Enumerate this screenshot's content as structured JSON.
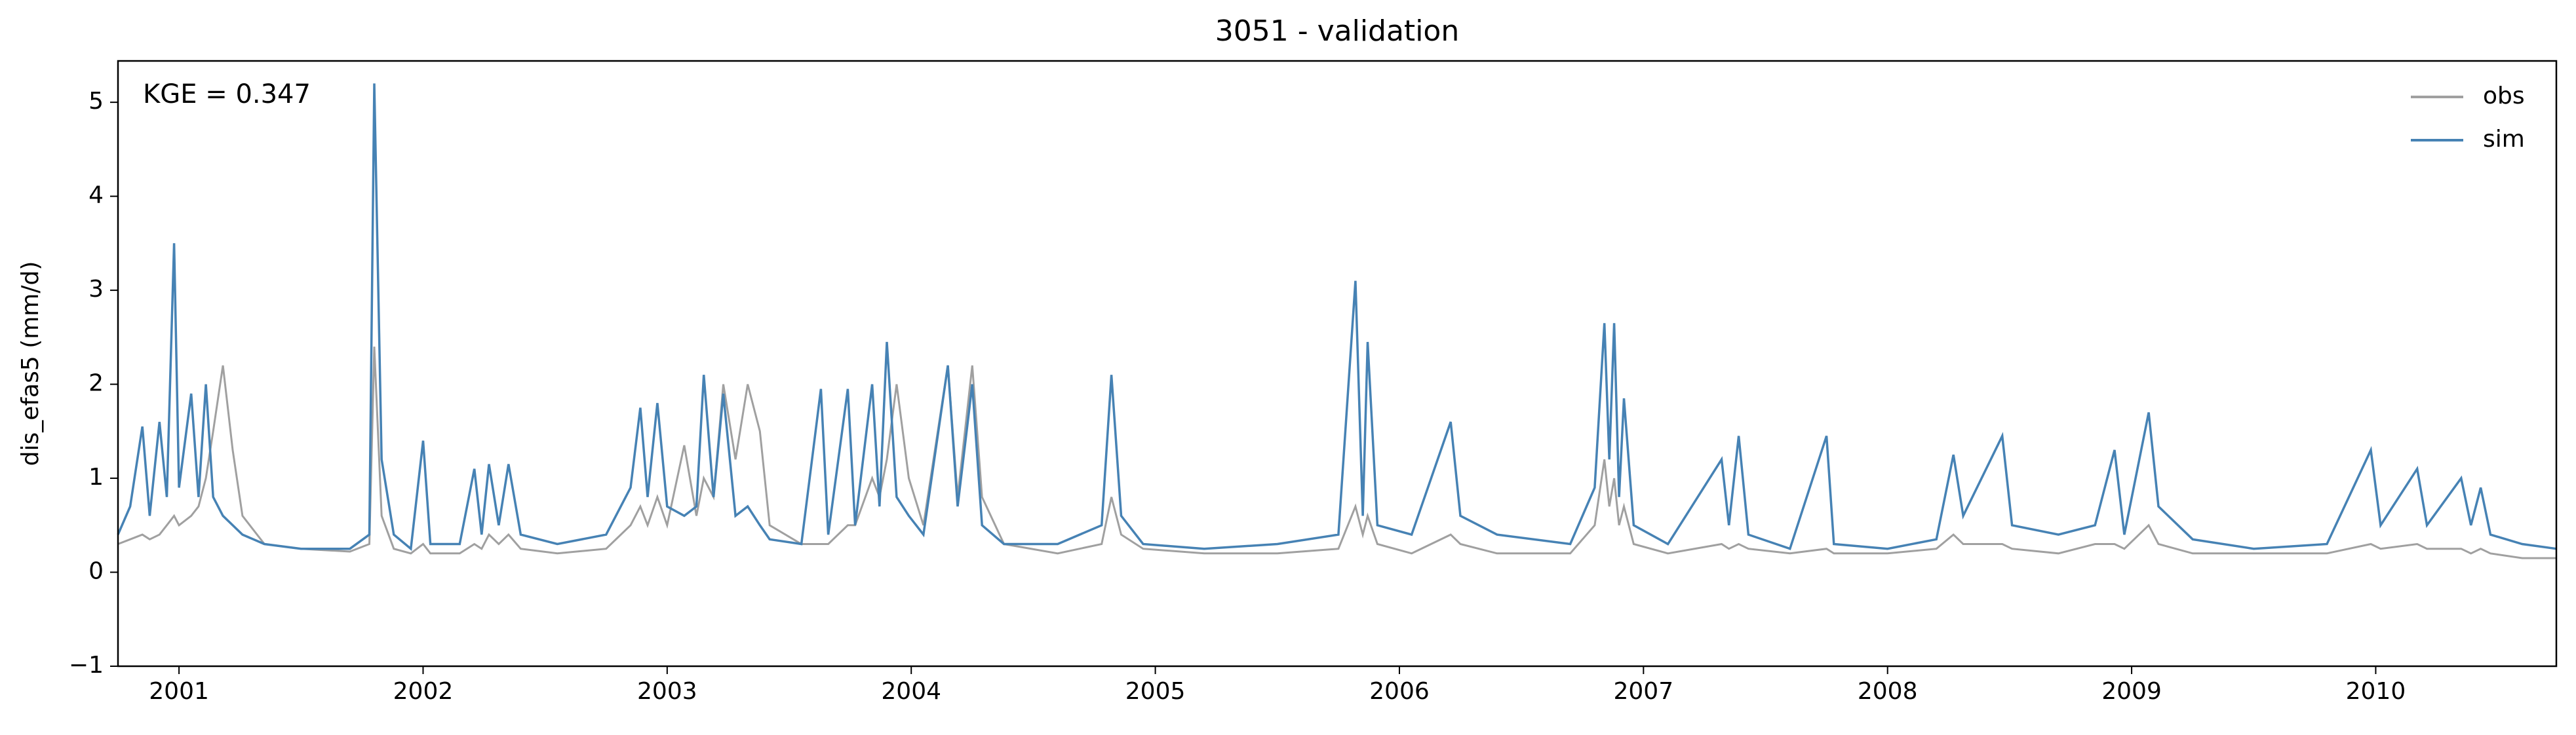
{
  "chart_data": {
    "type": "line",
    "title": "3051 - validation",
    "annotation": "KGE = 0.347",
    "y_label": "dis_efas5 (mm/d)",
    "x": [
      2000.75,
      2000.8,
      2000.85,
      2000.88,
      2000.92,
      2000.95,
      2000.98,
      2001.0,
      2001.05,
      2001.08,
      2001.11,
      2001.14,
      2001.18,
      2001.22,
      2001.26,
      2001.35,
      2001.5,
      2001.7,
      2001.78,
      2001.8,
      2001.83,
      2001.88,
      2001.95,
      2002.0,
      2002.03,
      2002.15,
      2002.21,
      2002.24,
      2002.27,
      2002.31,
      2002.35,
      2002.4,
      2002.55,
      2002.75,
      2002.85,
      2002.89,
      2002.92,
      2002.96,
      2003.0,
      2003.07,
      2003.12,
      2003.15,
      2003.19,
      2003.23,
      2003.28,
      2003.33,
      2003.38,
      2003.42,
      2003.55,
      2003.63,
      2003.66,
      2003.74,
      2003.77,
      2003.84,
      2003.87,
      2003.9,
      2003.94,
      2003.99,
      2004.05,
      2004.15,
      2004.19,
      2004.25,
      2004.29,
      2004.38,
      2004.6,
      2004.78,
      2004.82,
      2004.86,
      2004.95,
      2005.2,
      2005.5,
      2005.75,
      2005.82,
      2005.85,
      2005.87,
      2005.91,
      2006.05,
      2006.21,
      2006.25,
      2006.4,
      2006.7,
      2006.8,
      2006.84,
      2006.86,
      2006.88,
      2006.9,
      2006.92,
      2006.96,
      2007.1,
      2007.32,
      2007.35,
      2007.39,
      2007.43,
      2007.6,
      2007.75,
      2007.78,
      2008.0,
      2008.2,
      2008.27,
      2008.31,
      2008.47,
      2008.51,
      2008.7,
      2008.85,
      2008.93,
      2008.97,
      2009.07,
      2009.11,
      2009.25,
      2009.5,
      2009.8,
      2009.98,
      2010.02,
      2010.17,
      2010.21,
      2010.35,
      2010.39,
      2010.43,
      2010.47,
      2010.6,
      2010.74
    ],
    "series": [
      {
        "name": "obs",
        "color": "#a0a0a0",
        "values": [
          0.3,
          0.35,
          0.4,
          0.35,
          0.4,
          0.5,
          0.6,
          0.5,
          0.6,
          0.7,
          1.0,
          1.5,
          2.2,
          1.3,
          0.6,
          0.3,
          0.25,
          0.22,
          0.3,
          2.4,
          0.6,
          0.25,
          0.2,
          0.3,
          0.2,
          0.2,
          0.3,
          0.25,
          0.4,
          0.3,
          0.4,
          0.25,
          0.2,
          0.25,
          0.5,
          0.7,
          0.5,
          0.8,
          0.5,
          1.35,
          0.6,
          1.0,
          0.8,
          2.0,
          1.2,
          2.0,
          1.5,
          0.5,
          0.3,
          0.3,
          0.3,
          0.5,
          0.5,
          1.0,
          0.8,
          1.2,
          2.0,
          1.0,
          0.5,
          2.2,
          0.8,
          2.2,
          0.8,
          0.3,
          0.2,
          0.3,
          0.8,
          0.4,
          0.25,
          0.2,
          0.2,
          0.25,
          0.7,
          0.4,
          0.6,
          0.3,
          0.2,
          0.4,
          0.3,
          0.2,
          0.2,
          0.5,
          1.2,
          0.7,
          1.0,
          0.5,
          0.7,
          0.3,
          0.2,
          0.3,
          0.25,
          0.3,
          0.25,
          0.2,
          0.25,
          0.2,
          0.2,
          0.25,
          0.4,
          0.3,
          0.3,
          0.25,
          0.2,
          0.3,
          0.3,
          0.25,
          0.5,
          0.3,
          0.2,
          0.2,
          0.2,
          0.3,
          0.25,
          0.3,
          0.25,
          0.25,
          0.2,
          0.25,
          0.2,
          0.15,
          0.15
        ]
      },
      {
        "name": "sim",
        "color": "#4682b4",
        "values": [
          0.4,
          0.7,
          1.55,
          0.6,
          1.6,
          0.8,
          3.5,
          0.9,
          1.9,
          0.8,
          2.0,
          0.8,
          0.6,
          0.5,
          0.4,
          0.3,
          0.25,
          0.25,
          0.4,
          5.2,
          1.2,
          0.4,
          0.25,
          1.4,
          0.3,
          0.3,
          1.1,
          0.4,
          1.15,
          0.5,
          1.15,
          0.4,
          0.3,
          0.4,
          0.9,
          1.75,
          0.8,
          1.8,
          0.7,
          0.6,
          0.7,
          2.1,
          0.8,
          1.9,
          0.6,
          0.7,
          0.5,
          0.35,
          0.3,
          1.95,
          0.4,
          1.95,
          0.5,
          2.0,
          0.7,
          2.45,
          0.8,
          0.6,
          0.4,
          2.2,
          0.7,
          2.0,
          0.5,
          0.3,
          0.3,
          0.5,
          2.1,
          0.6,
          0.3,
          0.25,
          0.3,
          0.4,
          3.1,
          0.6,
          2.45,
          0.5,
          0.4,
          1.6,
          0.6,
          0.4,
          0.3,
          0.9,
          2.65,
          1.2,
          2.65,
          0.8,
          1.85,
          0.5,
          0.3,
          1.2,
          0.5,
          1.45,
          0.4,
          0.25,
          1.45,
          0.3,
          0.25,
          0.35,
          1.25,
          0.6,
          1.45,
          0.5,
          0.4,
          0.5,
          1.3,
          0.4,
          1.7,
          0.7,
          0.35,
          0.25,
          0.3,
          1.3,
          0.5,
          1.1,
          0.5,
          1.0,
          0.5,
          0.9,
          0.4,
          0.3,
          0.25
        ]
      }
    ],
    "xlim": [
      2000.75,
      2010.74
    ],
    "xticks": [
      2001,
      2002,
      2003,
      2004,
      2005,
      2006,
      2007,
      2008,
      2009,
      2010
    ],
    "ylim": [
      -1,
      5.44
    ],
    "yticks": [
      {
        "value": -1,
        "label": "−1"
      },
      0,
      1,
      2,
      3,
      4,
      5
    ],
    "legend": "upper right"
  }
}
